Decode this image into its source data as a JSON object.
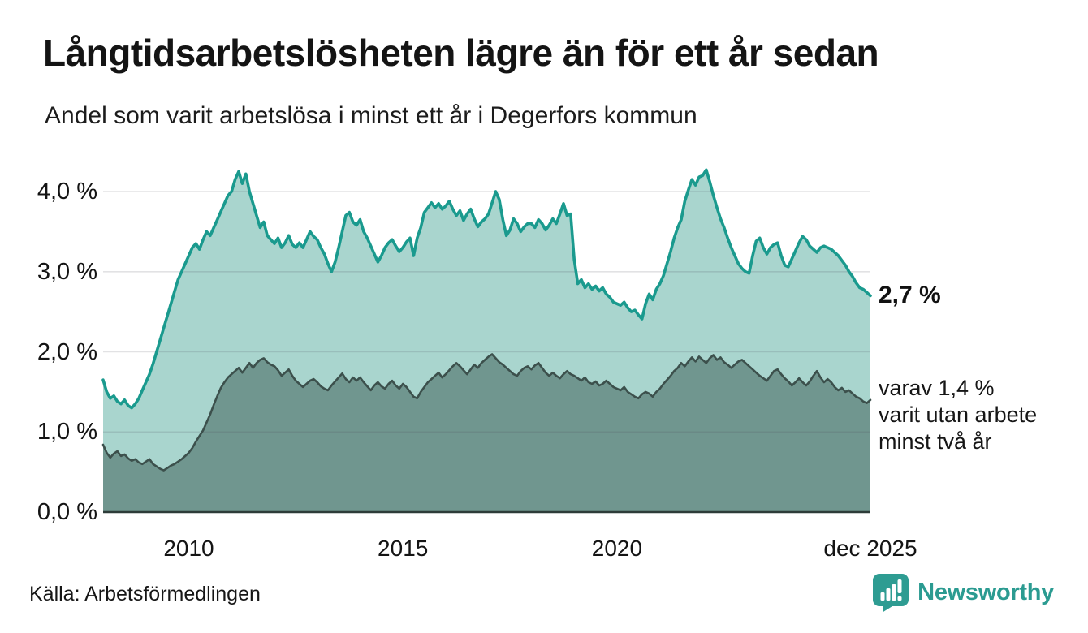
{
  "header": {
    "title": "Långtidsarbetslösheten lägre än för ett år sedan",
    "subtitle": "Andel som varit arbetslösa i minst ett år i Degerfors kommun"
  },
  "annotations": {
    "latest_value": "2,7 %",
    "two_year_note": "varav 1,4 %\nvarit utan arbete\nminst två år"
  },
  "footer": {
    "source": "Källa: Arbetsförmedlingen",
    "brand": "Newsworthy"
  },
  "colors": {
    "total_line": "#1a9a8e",
    "total_fill": "#a9d5ce",
    "two_year_line": "#3c504c",
    "two_year_fill": "#70968f",
    "gridline_tint": "#4a4a55",
    "axis": "#2d3c39",
    "brand_teal": "#2b9b91",
    "text": "#161616"
  },
  "chart_data": {
    "type": "area",
    "title": "Långtidsarbetslösheten lägre än för ett år sedan",
    "subtitle": "Andel som varit arbetslösa i minst ett år i Degerfors kommun",
    "x_unit": "month",
    "x_start": "2008-01",
    "x_end": "2025-12",
    "ylim": [
      0,
      4.4
    ],
    "grid": "horizontal",
    "legend_position": "right-annotations",
    "y_ticks": [
      {
        "label": "0,0 %",
        "value": 0
      },
      {
        "label": "1,0 %",
        "value": 1
      },
      {
        "label": "2,0 %",
        "value": 2
      },
      {
        "label": "3,0 %",
        "value": 3
      },
      {
        "label": "4,0 %",
        "value": 4
      }
    ],
    "x_ticks": [
      {
        "label": "2010",
        "month_index": 24
      },
      {
        "label": "2015",
        "month_index": 84
      },
      {
        "label": "2020",
        "month_index": 144
      },
      {
        "label": "dec 2025",
        "month_index": 215
      }
    ],
    "series": [
      {
        "name": "Arbetslösa minst ett år",
        "line_color": "#1a9a8e",
        "fill_color": "#a9d5ce",
        "last_value_label": "2,7 %",
        "values": [
          1.65,
          1.5,
          1.42,
          1.45,
          1.38,
          1.35,
          1.4,
          1.33,
          1.3,
          1.35,
          1.42,
          1.52,
          1.62,
          1.72,
          1.85,
          2.0,
          2.15,
          2.3,
          2.45,
          2.6,
          2.75,
          2.9,
          3.0,
          3.1,
          3.2,
          3.3,
          3.35,
          3.28,
          3.4,
          3.5,
          3.45,
          3.55,
          3.65,
          3.75,
          3.85,
          3.95,
          4.0,
          4.15,
          4.25,
          4.1,
          4.22,
          4.0,
          3.85,
          3.7,
          3.55,
          3.62,
          3.45,
          3.4,
          3.35,
          3.42,
          3.3,
          3.36,
          3.45,
          3.34,
          3.3,
          3.36,
          3.3,
          3.4,
          3.5,
          3.44,
          3.4,
          3.3,
          3.22,
          3.1,
          3.0,
          3.12,
          3.3,
          3.5,
          3.7,
          3.74,
          3.62,
          3.58,
          3.65,
          3.5,
          3.42,
          3.32,
          3.22,
          3.12,
          3.2,
          3.3,
          3.36,
          3.4,
          3.32,
          3.25,
          3.3,
          3.37,
          3.42,
          3.2,
          3.42,
          3.55,
          3.74,
          3.8,
          3.86,
          3.8,
          3.85,
          3.78,
          3.82,
          3.88,
          3.78,
          3.7,
          3.76,
          3.64,
          3.72,
          3.78,
          3.66,
          3.56,
          3.62,
          3.66,
          3.72,
          3.86,
          4.0,
          3.9,
          3.65,
          3.45,
          3.52,
          3.66,
          3.6,
          3.5,
          3.56,
          3.6,
          3.6,
          3.55,
          3.65,
          3.6,
          3.52,
          3.58,
          3.66,
          3.6,
          3.72,
          3.85,
          3.7,
          3.72,
          3.15,
          2.85,
          2.9,
          2.8,
          2.85,
          2.78,
          2.82,
          2.76,
          2.8,
          2.72,
          2.68,
          2.62,
          2.6,
          2.58,
          2.62,
          2.55,
          2.5,
          2.52,
          2.46,
          2.41,
          2.6,
          2.72,
          2.65,
          2.78,
          2.85,
          2.95,
          3.1,
          3.25,
          3.42,
          3.55,
          3.65,
          3.88,
          4.02,
          4.15,
          4.08,
          4.18,
          4.2,
          4.27,
          4.12,
          3.95,
          3.8,
          3.66,
          3.55,
          3.42,
          3.3,
          3.2,
          3.1,
          3.04,
          3.0,
          2.98,
          3.2,
          3.38,
          3.42,
          3.3,
          3.22,
          3.3,
          3.34,
          3.36,
          3.2,
          3.08,
          3.06,
          3.16,
          3.26,
          3.36,
          3.44,
          3.4,
          3.32,
          3.28,
          3.24,
          3.3,
          3.32,
          3.3,
          3.28,
          3.24,
          3.2,
          3.14,
          3.08,
          3.0,
          2.94,
          2.86,
          2.8,
          2.78,
          2.74,
          2.7
        ]
      },
      {
        "name": "Arbetslösa minst två år",
        "line_color": "#3c504c",
        "fill_color": "#70968f",
        "last_value_label": "1,4 %",
        "values": [
          0.84,
          0.74,
          0.68,
          0.73,
          0.76,
          0.7,
          0.72,
          0.67,
          0.64,
          0.66,
          0.62,
          0.6,
          0.63,
          0.66,
          0.6,
          0.57,
          0.54,
          0.52,
          0.55,
          0.58,
          0.6,
          0.63,
          0.66,
          0.7,
          0.74,
          0.8,
          0.88,
          0.95,
          1.02,
          1.12,
          1.22,
          1.34,
          1.45,
          1.55,
          1.62,
          1.68,
          1.72,
          1.76,
          1.8,
          1.74,
          1.8,
          1.86,
          1.8,
          1.86,
          1.9,
          1.92,
          1.87,
          1.84,
          1.82,
          1.77,
          1.7,
          1.74,
          1.78,
          1.7,
          1.64,
          1.6,
          1.56,
          1.6,
          1.64,
          1.66,
          1.62,
          1.57,
          1.54,
          1.52,
          1.58,
          1.63,
          1.68,
          1.73,
          1.66,
          1.62,
          1.68,
          1.64,
          1.68,
          1.62,
          1.57,
          1.52,
          1.58,
          1.62,
          1.57,
          1.54,
          1.6,
          1.64,
          1.58,
          1.54,
          1.6,
          1.56,
          1.5,
          1.44,
          1.42,
          1.5,
          1.56,
          1.62,
          1.66,
          1.7,
          1.74,
          1.68,
          1.72,
          1.77,
          1.82,
          1.86,
          1.82,
          1.77,
          1.72,
          1.78,
          1.84,
          1.8,
          1.86,
          1.9,
          1.94,
          1.97,
          1.92,
          1.87,
          1.84,
          1.8,
          1.76,
          1.72,
          1.7,
          1.76,
          1.8,
          1.82,
          1.78,
          1.83,
          1.86,
          1.8,
          1.74,
          1.7,
          1.74,
          1.7,
          1.67,
          1.72,
          1.76,
          1.72,
          1.7,
          1.67,
          1.64,
          1.68,
          1.62,
          1.6,
          1.63,
          1.58,
          1.6,
          1.64,
          1.6,
          1.56,
          1.54,
          1.52,
          1.56,
          1.5,
          1.47,
          1.44,
          1.42,
          1.47,
          1.5,
          1.48,
          1.44,
          1.5,
          1.54,
          1.6,
          1.65,
          1.7,
          1.76,
          1.8,
          1.86,
          1.82,
          1.88,
          1.93,
          1.88,
          1.94,
          1.9,
          1.86,
          1.92,
          1.96,
          1.9,
          1.93,
          1.87,
          1.84,
          1.8,
          1.84,
          1.88,
          1.9,
          1.86,
          1.82,
          1.78,
          1.74,
          1.7,
          1.67,
          1.64,
          1.7,
          1.76,
          1.78,
          1.72,
          1.67,
          1.63,
          1.58,
          1.62,
          1.67,
          1.62,
          1.58,
          1.63,
          1.7,
          1.76,
          1.68,
          1.62,
          1.66,
          1.62,
          1.56,
          1.52,
          1.55,
          1.5,
          1.52,
          1.48,
          1.44,
          1.42,
          1.38,
          1.36,
          1.4
        ]
      }
    ]
  }
}
